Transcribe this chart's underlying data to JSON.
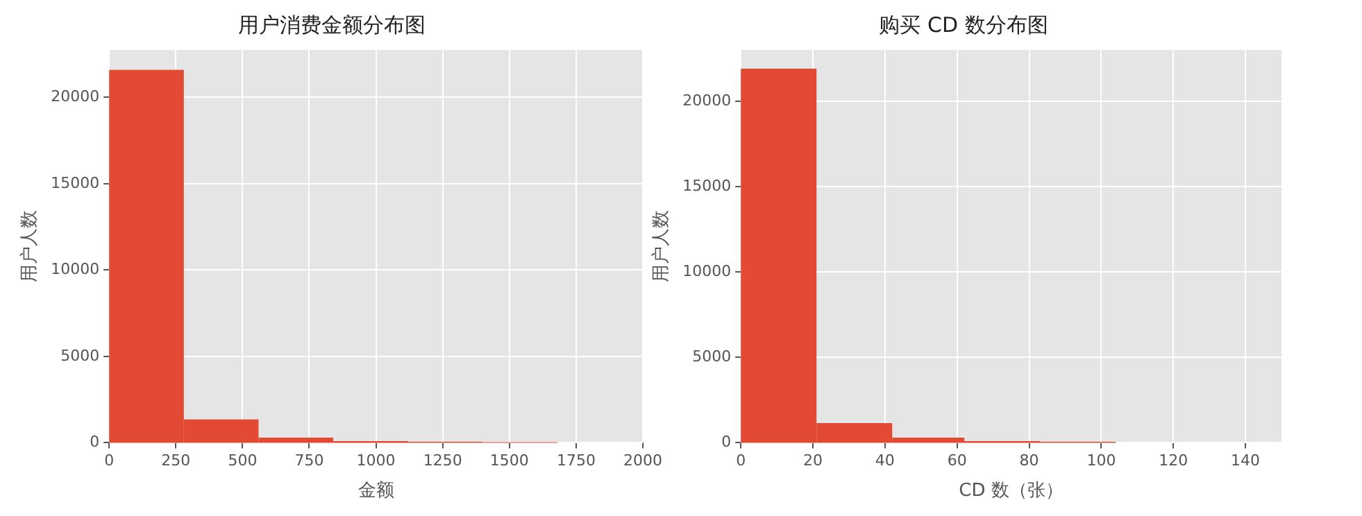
{
  "chart_data": [
    {
      "type": "histogram",
      "title": "用户消费金额分布图",
      "xlabel": "金额",
      "ylabel": "用户人数",
      "bins": [
        0,
        280,
        560,
        840,
        1120,
        1400,
        1680
      ],
      "values": [
        21600,
        1350,
        300,
        100,
        60,
        40
      ],
      "color": "#e24a33",
      "xlim": [
        0,
        2000
      ],
      "xticks": [
        0,
        250,
        500,
        750,
        1000,
        1250,
        1500,
        1750,
        2000
      ],
      "ylim": [
        0,
        22750
      ],
      "yticks": [
        0,
        5000,
        10000,
        15000,
        20000
      ],
      "grid": true
    },
    {
      "type": "histogram",
      "title": "购买 CD 数分布图",
      "xlabel": "CD 数（张）",
      "ylabel": "用户人数",
      "bins": [
        0,
        21,
        42,
        62,
        83,
        104
      ],
      "values": [
        21900,
        1150,
        300,
        100,
        60
      ],
      "color": "#e24a33",
      "xlim": [
        0,
        150
      ],
      "xticks": [
        0,
        20,
        40,
        60,
        80,
        100,
        120,
        140
      ],
      "ylim": [
        0,
        23000
      ],
      "yticks": [
        0,
        5000,
        10000,
        15000,
        20000
      ],
      "grid": true
    }
  ]
}
